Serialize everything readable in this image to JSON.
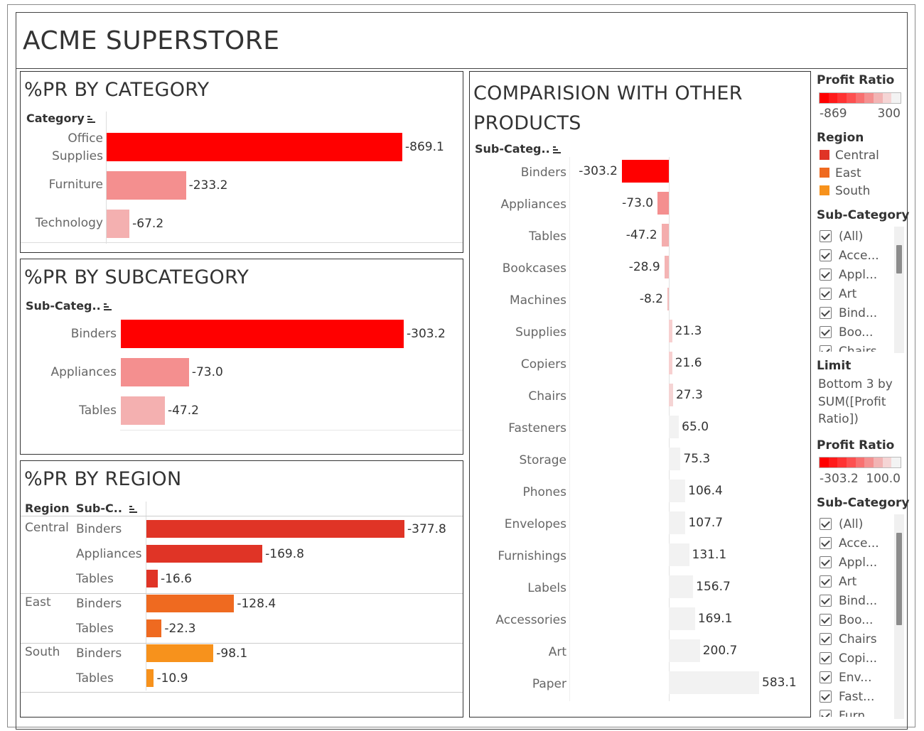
{
  "dashboard": {
    "title": "ACME SUPERSTORE"
  },
  "category_panel": {
    "title": "%PR BY CATEGORY",
    "header": "Category",
    "rows": [
      {
        "label_line1": "Office",
        "label_line2": "Supplies",
        "value": -869.1,
        "value_label": "-869.1",
        "color": "#ff0000"
      },
      {
        "label_line1": "Furniture",
        "label_line2": "",
        "value": -233.2,
        "value_label": "-233.2",
        "color": "#f48f8f"
      },
      {
        "label_line1": "Technology",
        "label_line2": "",
        "value": -67.2,
        "value_label": "-67.2",
        "color": "#f4b0b0"
      }
    ]
  },
  "subcategory_panel": {
    "title": "%PR BY SUBCATEGORY",
    "header": "Sub-Categ..",
    "rows": [
      {
        "label": "Binders",
        "value": -303.2,
        "value_label": "-303.2",
        "color": "#ff0000"
      },
      {
        "label": "Appliances",
        "value": -73.0,
        "value_label": "-73.0",
        "color": "#f48f8f"
      },
      {
        "label": "Tables",
        "value": -47.2,
        "value_label": "-47.2",
        "color": "#f4b0b0"
      }
    ]
  },
  "region_panel": {
    "title": "%PR BY REGION",
    "header_region": "Region",
    "header_subcat": "Sub-C..",
    "groups": [
      {
        "region": "Central",
        "rows": [
          {
            "label": "Binders",
            "value": -377.8,
            "value_label": "-377.8",
            "color": "#e03426"
          },
          {
            "label": "Appliances",
            "value": -169.8,
            "value_label": "-169.8",
            "color": "#e03426"
          },
          {
            "label": "Tables",
            "value": -16.6,
            "value_label": "-16.6",
            "color": "#e03426"
          }
        ]
      },
      {
        "region": "East",
        "rows": [
          {
            "label": "Binders",
            "value": -128.4,
            "value_label": "-128.4",
            "color": "#ef6a20"
          },
          {
            "label": "Tables",
            "value": -22.3,
            "value_label": "-22.3",
            "color": "#ef6a20"
          }
        ]
      },
      {
        "region": "South",
        "rows": [
          {
            "label": "Binders",
            "value": -98.1,
            "value_label": "-98.1",
            "color": "#f7921c"
          },
          {
            "label": "Tables",
            "value": -10.9,
            "value_label": "-10.9",
            "color": "#f7921c"
          }
        ]
      }
    ]
  },
  "comparison_panel": {
    "title_line1": "COMPARISION WITH OTHER",
    "title_line2": "PRODUCTS",
    "header": "Sub-Categ..",
    "rows": [
      {
        "label": "Binders",
        "value": -303.2,
        "value_label": "-303.2",
        "color": "#ff0000"
      },
      {
        "label": "Appliances",
        "value": -73.0,
        "value_label": "-73.0",
        "color": "#f48f8f"
      },
      {
        "label": "Tables",
        "value": -47.2,
        "value_label": "-47.2",
        "color": "#f4adad"
      },
      {
        "label": "Bookcases",
        "value": -28.9,
        "value_label": "-28.9",
        "color": "#f4b4b4"
      },
      {
        "label": "Machines",
        "value": -8.2,
        "value_label": "-8.2",
        "color": "#f4bcbc"
      },
      {
        "label": "Supplies",
        "value": 21.3,
        "value_label": "21.3",
        "color": "#f7d0d0"
      },
      {
        "label": "Copiers",
        "value": 21.6,
        "value_label": "21.6",
        "color": "#f7d0d0"
      },
      {
        "label": "Chairs",
        "value": 27.3,
        "value_label": "27.3",
        "color": "#f5d4d4"
      },
      {
        "label": "Fasteners",
        "value": 65.0,
        "value_label": "65.0",
        "color": "#f2f2f2"
      },
      {
        "label": "Storage",
        "value": 75.3,
        "value_label": "75.3",
        "color": "#f2f2f2"
      },
      {
        "label": "Phones",
        "value": 106.4,
        "value_label": "106.4",
        "color": "#f2f2f2"
      },
      {
        "label": "Envelopes",
        "value": 107.7,
        "value_label": "107.7",
        "color": "#f2f2f2"
      },
      {
        "label": "Furnishings",
        "value": 131.1,
        "value_label": "131.1",
        "color": "#f2f2f2"
      },
      {
        "label": "Labels",
        "value": 156.7,
        "value_label": "156.7",
        "color": "#f2f2f2"
      },
      {
        "label": "Accessories",
        "value": 169.1,
        "value_label": "169.1",
        "color": "#f2f2f2"
      },
      {
        "label": "Art",
        "value": 200.7,
        "value_label": "200.7",
        "color": "#f2f2f2"
      },
      {
        "label": "Paper",
        "value": 583.1,
        "value_label": "583.1",
        "color": "#f2f2f2"
      }
    ]
  },
  "sidebar": {
    "profit_ratio_legend_1": {
      "title": "Profit Ratio",
      "min_label": "-869",
      "max_label": "300",
      "colors": [
        "#ff0000",
        "#ff1a1a",
        "#ff3333",
        "#fd5050",
        "#f87070",
        "#f49090",
        "#f2b4b4",
        "#f5d5d5",
        "#f3f3f3"
      ]
    },
    "region_legend": {
      "title": "Region",
      "items": [
        {
          "label": "Central",
          "color": "#e03426"
        },
        {
          "label": "East",
          "color": "#ef6a20"
        },
        {
          "label": "South",
          "color": "#f7921c"
        }
      ]
    },
    "subcategory_filter_1": {
      "title": "Sub-Category",
      "items": [
        "(All)",
        "Acce...",
        "Appl...",
        "Art",
        "Bind...",
        "Boo...",
        "Chairs"
      ]
    },
    "limit": {
      "title": "Limit",
      "text": "Bottom 3 by SUM([Profit Ratio])"
    },
    "profit_ratio_legend_2": {
      "title": "Profit Ratio",
      "min_label": "-303.2",
      "max_label": "100.0",
      "colors": [
        "#ff0000",
        "#ff1a1a",
        "#ff3333",
        "#fd5050",
        "#f87070",
        "#f49090",
        "#f2b4b4",
        "#f5d5d5",
        "#f3f3f3"
      ]
    },
    "subcategory_filter_2": {
      "title": "Sub-Category",
      "items": [
        "(All)",
        "Acce...",
        "Appl...",
        "Art",
        "Bind...",
        "Boo...",
        "Chairs",
        "Copi...",
        "Env...",
        "Fast...",
        "Furn..."
      ]
    }
  },
  "chart_data": [
    {
      "type": "bar",
      "title": "%PR BY CATEGORY",
      "orientation": "horizontal",
      "categories": [
        "Office Supplies",
        "Furniture",
        "Technology"
      ],
      "values": [
        -869.1,
        -233.2,
        -67.2
      ]
    },
    {
      "type": "bar",
      "title": "%PR BY SUBCATEGORY",
      "orientation": "horizontal",
      "categories": [
        "Binders",
        "Appliances",
        "Tables"
      ],
      "values": [
        -303.2,
        -73.0,
        -47.2
      ]
    },
    {
      "type": "bar",
      "title": "%PR BY REGION",
      "orientation": "horizontal",
      "categories": [
        "Central / Binders",
        "Central / Appliances",
        "Central / Tables",
        "East / Binders",
        "East / Tables",
        "South / Binders",
        "South / Tables"
      ],
      "values": [
        -377.8,
        -169.8,
        -16.6,
        -128.4,
        -22.3,
        -98.1,
        -10.9
      ]
    },
    {
      "type": "bar",
      "title": "COMPARISION WITH OTHER PRODUCTS",
      "orientation": "horizontal",
      "categories": [
        "Binders",
        "Appliances",
        "Tables",
        "Bookcases",
        "Machines",
        "Supplies",
        "Copiers",
        "Chairs",
        "Fasteners",
        "Storage",
        "Phones",
        "Envelopes",
        "Furnishings",
        "Labels",
        "Accessories",
        "Art",
        "Paper"
      ],
      "values": [
        -303.2,
        -73.0,
        -47.2,
        -28.9,
        -8.2,
        21.3,
        21.6,
        27.3,
        65.0,
        75.3,
        106.4,
        107.7,
        131.1,
        156.7,
        169.1,
        200.7,
        583.1
      ]
    }
  ]
}
